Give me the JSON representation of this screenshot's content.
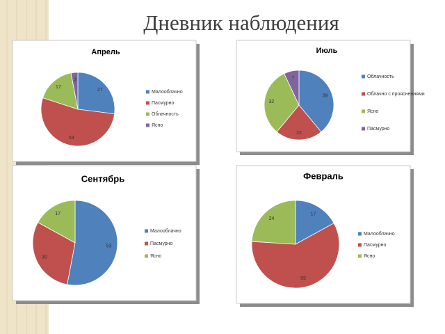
{
  "title": "Дневник наблюдения",
  "chart_data": [
    {
      "type": "pie",
      "title": "Апрель",
      "categories": [
        "Малооблачно",
        "Пасмурно",
        "Облачность",
        "Ясно"
      ],
      "values": [
        27,
        53,
        17,
        3
      ],
      "colors": [
        "#4f81bd",
        "#c0504d",
        "#9bbb59",
        "#8064a2"
      ]
    },
    {
      "type": "pie",
      "title": "Июль",
      "categories": [
        "Облачность",
        "Облачно с прояснениями",
        "Ясно",
        "Пасмурно"
      ],
      "values": [
        39,
        22,
        32,
        7
      ],
      "colors": [
        "#4f81bd",
        "#c0504d",
        "#9bbb59",
        "#8064a2"
      ]
    },
    {
      "type": "pie",
      "title": "Сентябрь",
      "categories": [
        "Малооблачно",
        "Пасмурно",
        "Ясно"
      ],
      "values": [
        53,
        30,
        17
      ],
      "colors": [
        "#4f81bd",
        "#c0504d",
        "#9bbb59"
      ]
    },
    {
      "type": "pie",
      "title": "Февраль",
      "categories": [
        "Малооблачно",
        "Пасмурно",
        "Ясно"
      ],
      "values": [
        17,
        59,
        24
      ],
      "colors": [
        "#4f81bd",
        "#c0504d",
        "#9bbb59"
      ]
    }
  ]
}
